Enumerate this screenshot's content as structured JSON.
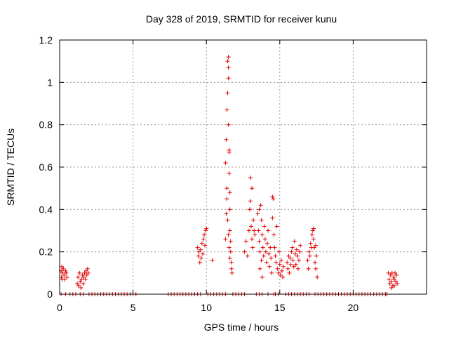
{
  "chart_data": {
    "type": "scatter",
    "title": "Day 328 of 2019, SRMTID for receiver kunu",
    "xlabel": "GPS time / hours",
    "ylabel": "SRMTID / TECUs",
    "xlim": [
      0,
      25
    ],
    "ylim": [
      0,
      1.2
    ],
    "x_ticks": [
      0,
      5,
      10,
      15,
      20
    ],
    "y_ticks": [
      0,
      0.2,
      0.4,
      0.6,
      0.8,
      1,
      1.2
    ],
    "x_tick_labels": [
      "0",
      "5",
      "10",
      "15",
      "20"
    ],
    "y_tick_labels": [
      "0",
      "0.2",
      "0.4",
      "0.6",
      "0.8",
      "1",
      "1.2"
    ],
    "grid": true,
    "marker": "+",
    "series": [
      {
        "color": "#e00000",
        "points": [
          [
            0.1,
            0.11
          ],
          [
            0.12,
            0.08
          ],
          [
            0.15,
            0.13
          ],
          [
            0.18,
            0.07
          ],
          [
            0.2,
            0.1
          ],
          [
            0.25,
            0.12
          ],
          [
            0.3,
            0.09
          ],
          [
            0.35,
            0.07
          ],
          [
            0.4,
            0.11
          ],
          [
            0.45,
            0.1
          ],
          [
            0.5,
            0.08
          ],
          [
            0.1,
            0.0
          ],
          [
            0.4,
            0.0
          ],
          [
            0.7,
            0.0
          ],
          [
            0.9,
            0.0
          ],
          [
            1.1,
            0.0
          ],
          [
            1.2,
            0.05
          ],
          [
            1.25,
            0.08
          ],
          [
            1.3,
            0.04
          ],
          [
            1.35,
            0.1
          ],
          [
            1.4,
            0.06
          ],
          [
            1.45,
            0.03
          ],
          [
            1.5,
            0.07
          ],
          [
            1.55,
            0.09
          ],
          [
            1.6,
            0.05
          ],
          [
            1.65,
            0.08
          ],
          [
            1.7,
            0.1
          ],
          [
            1.75,
            0.07
          ],
          [
            1.8,
            0.11
          ],
          [
            1.85,
            0.09
          ],
          [
            1.9,
            0.12
          ],
          [
            1.95,
            0.1
          ],
          [
            1.4,
            0.0
          ],
          [
            1.6,
            0.0
          ],
          [
            2.0,
            0.0
          ],
          [
            2.2,
            0.0
          ],
          [
            2.4,
            0.0
          ],
          [
            2.6,
            0.0
          ],
          [
            2.8,
            0.0
          ],
          [
            3.0,
            0.0
          ],
          [
            3.2,
            0.0
          ],
          [
            3.4,
            0.0
          ],
          [
            3.6,
            0.0
          ],
          [
            3.8,
            0.0
          ],
          [
            4.0,
            0.0
          ],
          [
            4.2,
            0.0
          ],
          [
            4.4,
            0.0
          ],
          [
            4.6,
            0.0
          ],
          [
            4.8,
            0.0
          ],
          [
            5.0,
            0.0
          ],
          [
            5.2,
            0.0
          ],
          [
            7.4,
            0.0
          ],
          [
            7.6,
            0.0
          ],
          [
            7.8,
            0.0
          ],
          [
            8.0,
            0.0
          ],
          [
            8.2,
            0.0
          ],
          [
            8.4,
            0.0
          ],
          [
            8.6,
            0.0
          ],
          [
            8.8,
            0.0
          ],
          [
            9.0,
            0.0
          ],
          [
            9.2,
            0.0
          ],
          [
            9.4,
            0.0
          ],
          [
            9.6,
            0.0
          ],
          [
            9.4,
            0.22
          ],
          [
            9.45,
            0.18
          ],
          [
            9.5,
            0.2
          ],
          [
            9.55,
            0.15
          ],
          [
            9.6,
            0.21
          ],
          [
            9.65,
            0.17
          ],
          [
            9.7,
            0.24
          ],
          [
            9.75,
            0.19
          ],
          [
            9.8,
            0.26
          ],
          [
            9.85,
            0.28
          ],
          [
            9.9,
            0.23
          ],
          [
            9.95,
            0.3
          ],
          [
            10.0,
            0.31
          ],
          [
            10.4,
            0.16
          ],
          [
            10.1,
            0.0
          ],
          [
            10.3,
            0.0
          ],
          [
            10.5,
            0.0
          ],
          [
            10.7,
            0.0
          ],
          [
            10.9,
            0.0
          ],
          [
            11.1,
            0.0
          ],
          [
            11.3,
            0.0
          ],
          [
            11.3,
            0.62
          ],
          [
            11.35,
            0.73
          ],
          [
            11.4,
            0.5
          ],
          [
            11.4,
            0.87
          ],
          [
            11.45,
            1.1
          ],
          [
            11.45,
            0.95
          ],
          [
            11.5,
            1.07
          ],
          [
            11.5,
            1.02
          ],
          [
            11.5,
            0.8
          ],
          [
            11.55,
            0.67
          ],
          [
            11.55,
            0.57
          ],
          [
            11.6,
            0.48
          ],
          [
            11.6,
            0.4
          ],
          [
            11.6,
            0.3
          ],
          [
            11.65,
            0.25
          ],
          [
            11.65,
            0.2
          ],
          [
            11.7,
            0.15
          ],
          [
            11.7,
            0.12
          ],
          [
            11.75,
            0.1
          ],
          [
            11.4,
            0.45
          ],
          [
            11.45,
            0.35
          ],
          [
            11.5,
            0.28
          ],
          [
            11.55,
            0.22
          ],
          [
            11.6,
            0.17
          ],
          [
            11.3,
            0.26
          ],
          [
            11.35,
            0.38
          ],
          [
            11.5,
            1.12
          ],
          [
            11.55,
            0.68
          ],
          [
            11.8,
            0.0
          ],
          [
            12.0,
            0.0
          ],
          [
            12.2,
            0.0
          ],
          [
            12.4,
            0.0
          ],
          [
            12.6,
            0.0
          ],
          [
            12.6,
            0.2
          ],
          [
            12.7,
            0.25
          ],
          [
            12.8,
            0.18
          ],
          [
            12.9,
            0.3
          ],
          [
            12.95,
            0.4
          ],
          [
            13.0,
            0.55
          ],
          [
            13.0,
            0.44
          ],
          [
            13.05,
            0.32
          ],
          [
            13.1,
            0.5
          ],
          [
            13.1,
            0.26
          ],
          [
            13.15,
            0.22
          ],
          [
            13.2,
            0.35
          ],
          [
            13.25,
            0.3
          ],
          [
            13.3,
            0.28
          ],
          [
            13.4,
            0.0
          ],
          [
            13.6,
            0.0
          ],
          [
            13.8,
            0.0
          ],
          [
            14.2,
            0.0
          ],
          [
            13.5,
            0.38
          ],
          [
            13.55,
            0.3
          ],
          [
            13.6,
            0.25
          ],
          [
            13.65,
            0.2
          ],
          [
            13.7,
            0.42
          ],
          [
            13.75,
            0.35
          ],
          [
            13.8,
            0.28
          ],
          [
            13.85,
            0.22
          ],
          [
            13.9,
            0.18
          ],
          [
            13.95,
            0.32
          ],
          [
            14.0,
            0.26
          ],
          [
            14.05,
            0.2
          ],
          [
            14.1,
            0.15
          ],
          [
            14.15,
            0.24
          ],
          [
            14.2,
            0.3
          ],
          [
            14.25,
            0.19
          ],
          [
            14.3,
            0.13
          ],
          [
            14.35,
            0.22
          ],
          [
            14.4,
            0.17
          ],
          [
            14.45,
            0.1
          ],
          [
            13.65,
            0.12
          ],
          [
            13.8,
            0.08
          ],
          [
            13.6,
            0.4
          ],
          [
            13.75,
            0.16
          ],
          [
            14.5,
            0.46
          ],
          [
            14.55,
            0.45
          ],
          [
            14.5,
            0.36
          ],
          [
            14.6,
            0.0
          ],
          [
            14.7,
            0.0
          ],
          [
            14.9,
            0.0
          ],
          [
            14.6,
            0.28
          ],
          [
            14.65,
            0.22
          ],
          [
            14.7,
            0.18
          ],
          [
            14.75,
            0.15
          ],
          [
            14.8,
            0.32
          ],
          [
            14.85,
            0.12
          ],
          [
            14.9,
            0.1
          ],
          [
            14.95,
            0.2
          ],
          [
            15.0,
            0.14
          ],
          [
            15.05,
            0.09
          ],
          [
            15.1,
            0.16
          ],
          [
            15.15,
            0.11
          ],
          [
            15.2,
            0.08
          ],
          [
            15.25,
            0.13
          ],
          [
            15.4,
            0.0
          ],
          [
            15.6,
            0.0
          ],
          [
            15.8,
            0.0
          ],
          [
            16.0,
            0.0
          ],
          [
            16.2,
            0.0
          ],
          [
            16.4,
            0.0
          ],
          [
            15.5,
            0.15
          ],
          [
            15.55,
            0.12
          ],
          [
            15.6,
            0.18
          ],
          [
            15.65,
            0.1
          ],
          [
            15.7,
            0.17
          ],
          [
            15.75,
            0.14
          ],
          [
            15.8,
            0.2
          ],
          [
            15.85,
            0.22
          ],
          [
            15.9,
            0.16
          ],
          [
            15.95,
            0.13
          ],
          [
            16.0,
            0.25
          ],
          [
            16.05,
            0.19
          ],
          [
            16.1,
            0.14
          ],
          [
            16.15,
            0.21
          ],
          [
            16.2,
            0.18
          ],
          [
            16.25,
            0.12
          ],
          [
            16.3,
            0.16
          ],
          [
            16.35,
            0.2
          ],
          [
            16.4,
            0.23
          ],
          [
            16.6,
            0.0
          ],
          [
            16.8,
            0.0
          ],
          [
            17.0,
            0.0
          ],
          [
            17.4,
            0.0
          ],
          [
            17.6,
            0.0
          ],
          [
            17.8,
            0.0
          ],
          [
            18.0,
            0.0
          ],
          [
            18.2,
            0.0
          ],
          [
            18.4,
            0.0
          ],
          [
            18.6,
            0.0
          ],
          [
            18.8,
            0.0
          ],
          [
            19.0,
            0.0
          ],
          [
            19.2,
            0.0
          ],
          [
            19.4,
            0.0
          ],
          [
            19.6,
            0.0
          ],
          [
            19.8,
            0.0
          ],
          [
            20.0,
            0.0
          ],
          [
            20.2,
            0.0
          ],
          [
            20.4,
            0.0
          ],
          [
            20.6,
            0.0
          ],
          [
            20.8,
            0.0
          ],
          [
            21.0,
            0.0
          ],
          [
            21.2,
            0.0
          ],
          [
            21.4,
            0.0
          ],
          [
            21.6,
            0.0
          ],
          [
            21.8,
            0.0
          ],
          [
            22.0,
            0.0
          ],
          [
            22.2,
            0.0
          ],
          [
            22.3,
            0.0
          ],
          [
            16.9,
            0.16
          ],
          [
            16.95,
            0.12
          ],
          [
            17.0,
            0.2
          ],
          [
            17.05,
            0.18
          ],
          [
            17.1,
            0.24
          ],
          [
            17.15,
            0.22
          ],
          [
            17.2,
            0.28
          ],
          [
            17.25,
            0.3
          ],
          [
            17.3,
            0.26
          ],
          [
            17.35,
            0.22
          ],
          [
            17.4,
            0.15
          ],
          [
            17.45,
            0.12
          ],
          [
            17.5,
            0.18
          ],
          [
            17.55,
            0.08
          ],
          [
            17.3,
            0.31
          ],
          [
            17.45,
            0.23
          ],
          [
            22.4,
            0.1
          ],
          [
            22.45,
            0.07
          ],
          [
            22.5,
            0.05
          ],
          [
            22.55,
            0.09
          ],
          [
            22.6,
            0.06
          ],
          [
            22.65,
            0.1
          ],
          [
            22.7,
            0.04
          ],
          [
            22.75,
            0.08
          ],
          [
            22.8,
            0.07
          ],
          [
            22.85,
            0.1
          ],
          [
            22.9,
            0.06
          ],
          [
            22.95,
            0.09
          ],
          [
            23.0,
            0.05
          ],
          [
            22.6,
            0.03
          ],
          [
            22.8,
            0.04
          ]
        ]
      }
    ]
  }
}
